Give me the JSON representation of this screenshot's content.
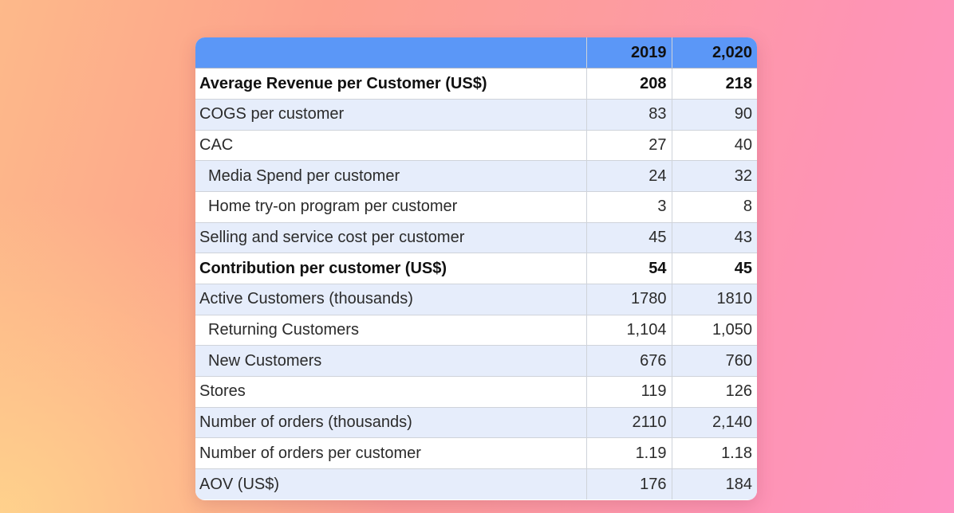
{
  "table": {
    "headers": [
      "",
      "2019",
      "2,020"
    ],
    "rows": [
      {
        "label": "Average Revenue per Customer (US$)",
        "y2019": "208",
        "y2020": "218",
        "bold": true,
        "indent": false
      },
      {
        "label": "COGS per customer",
        "y2019": "83",
        "y2020": "90",
        "bold": false,
        "indent": false
      },
      {
        "label": "CAC",
        "y2019": "27",
        "y2020": "40",
        "bold": false,
        "indent": false
      },
      {
        "label": "Media Spend per customer",
        "y2019": "24",
        "y2020": "32",
        "bold": false,
        "indent": true
      },
      {
        "label": "Home try-on program per customer",
        "y2019": "3",
        "y2020": "8",
        "bold": false,
        "indent": true
      },
      {
        "label": "Selling and service cost per customer",
        "y2019": "45",
        "y2020": "43",
        "bold": false,
        "indent": false
      },
      {
        "label": "Contribution per customer (US$)",
        "y2019": "54",
        "y2020": "45",
        "bold": true,
        "indent": false
      },
      {
        "label": "Active Customers (thousands)",
        "y2019": "1780",
        "y2020": "1810",
        "bold": false,
        "indent": false
      },
      {
        "label": "Returning Customers",
        "y2019": "1,104",
        "y2020": "1,050",
        "bold": false,
        "indent": true
      },
      {
        "label": "New Customers",
        "y2019": "676",
        "y2020": "760",
        "bold": false,
        "indent": true
      },
      {
        "label": "Stores",
        "y2019": "119",
        "y2020": "126",
        "bold": false,
        "indent": false
      },
      {
        "label": "Number of orders (thousands)",
        "y2019": "2110",
        "y2020": "2,140",
        "bold": false,
        "indent": false
      },
      {
        "label": "Number of orders per customer",
        "y2019": "1.19",
        "y2020": "1.18",
        "bold": false,
        "indent": false
      },
      {
        "label": "AOV (US$)",
        "y2019": "176",
        "y2020": "184",
        "bold": false,
        "indent": false
      }
    ]
  },
  "colors": {
    "header_bg": "#5b97f7",
    "stripe_bg": "#e6edfb"
  }
}
